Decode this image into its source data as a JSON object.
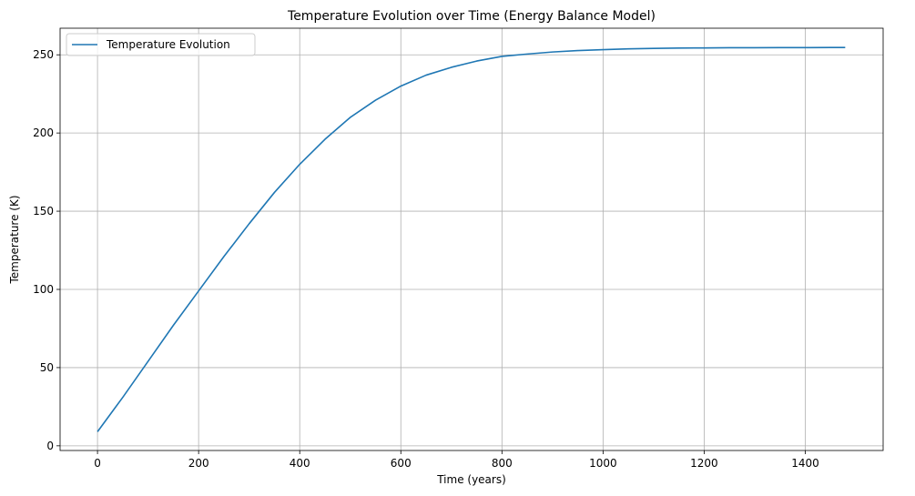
{
  "chart_data": {
    "type": "line",
    "title": "Temperature Evolution over Time (Energy Balance Model)",
    "xlabel": "Time (years)",
    "ylabel": "Temperature (K)",
    "xlim": [
      -74,
      1554
    ],
    "ylim": [
      -3,
      267
    ],
    "xticks": [
      0,
      200,
      400,
      600,
      800,
      1000,
      1200,
      1400
    ],
    "yticks": [
      0,
      50,
      100,
      150,
      200,
      250
    ],
    "xtick_labels": [
      "0",
      "200",
      "400",
      "600",
      "800",
      "1000",
      "1200",
      "1400"
    ],
    "ytick_labels": [
      "0",
      "50",
      "100",
      "150",
      "200",
      "250"
    ],
    "grid": true,
    "legend_position": "top-left",
    "series": [
      {
        "name": "Temperature Evolution",
        "color": "#1f77b4",
        "x": [
          0,
          50,
          100,
          150,
          200,
          250,
          300,
          350,
          400,
          450,
          500,
          550,
          600,
          650,
          700,
          750,
          800,
          850,
          900,
          950,
          1000,
          1050,
          1100,
          1150,
          1200,
          1250,
          1300,
          1350,
          1400,
          1450,
          1479
        ],
        "y": [
          9,
          31,
          54,
          77,
          99,
          121,
          142,
          162,
          180,
          196,
          210,
          221,
          230,
          237,
          242,
          246,
          249,
          250.5,
          251.8,
          252.7,
          253.3,
          253.8,
          254.1,
          254.3,
          254.4,
          254.5,
          254.55,
          254.6,
          254.6,
          254.65,
          254.65
        ]
      }
    ]
  }
}
